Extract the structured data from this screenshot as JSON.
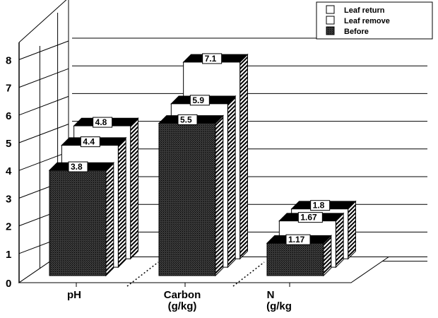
{
  "chart_data": {
    "type": "bar",
    "title": "",
    "xlabel": "",
    "ylabel": "",
    "ylim": [
      0,
      8
    ],
    "yticks": [
      "0",
      "1",
      "2",
      "3",
      "4",
      "5",
      "6",
      "7",
      "8"
    ],
    "categories": [
      [
        "pH"
      ],
      [
        "Carbon",
        "(g/kg)"
      ],
      [
        "N",
        "(g/kg"
      ]
    ],
    "series": [
      {
        "name": "Before",
        "values": [
          3.8,
          5.5,
          1.17
        ],
        "labels": [
          "3.8",
          "5.5",
          "1.17"
        ],
        "fill": "dark-stipple"
      },
      {
        "name": "Leaf  remove",
        "values": [
          4.4,
          5.9,
          1.67
        ],
        "labels": [
          "4.4",
          "5.9",
          "1.67"
        ],
        "fill": "white"
      },
      {
        "name": "Leaf  return",
        "values": [
          4.8,
          7.1,
          1.8
        ],
        "labels": [
          "4.8",
          "7.1",
          "1.8"
        ],
        "fill": "white"
      }
    ],
    "legend": {
      "position": "top-right",
      "entries": [
        "Leaf  return",
        "Leaf  remove",
        "Before"
      ]
    },
    "grid": true,
    "style": "3d-clustered"
  },
  "colors": {
    "bar_face_dark": "#2a2a2a",
    "bar_face_light": "#ffffff",
    "bar_top": "#000000",
    "outline": "#000000"
  }
}
